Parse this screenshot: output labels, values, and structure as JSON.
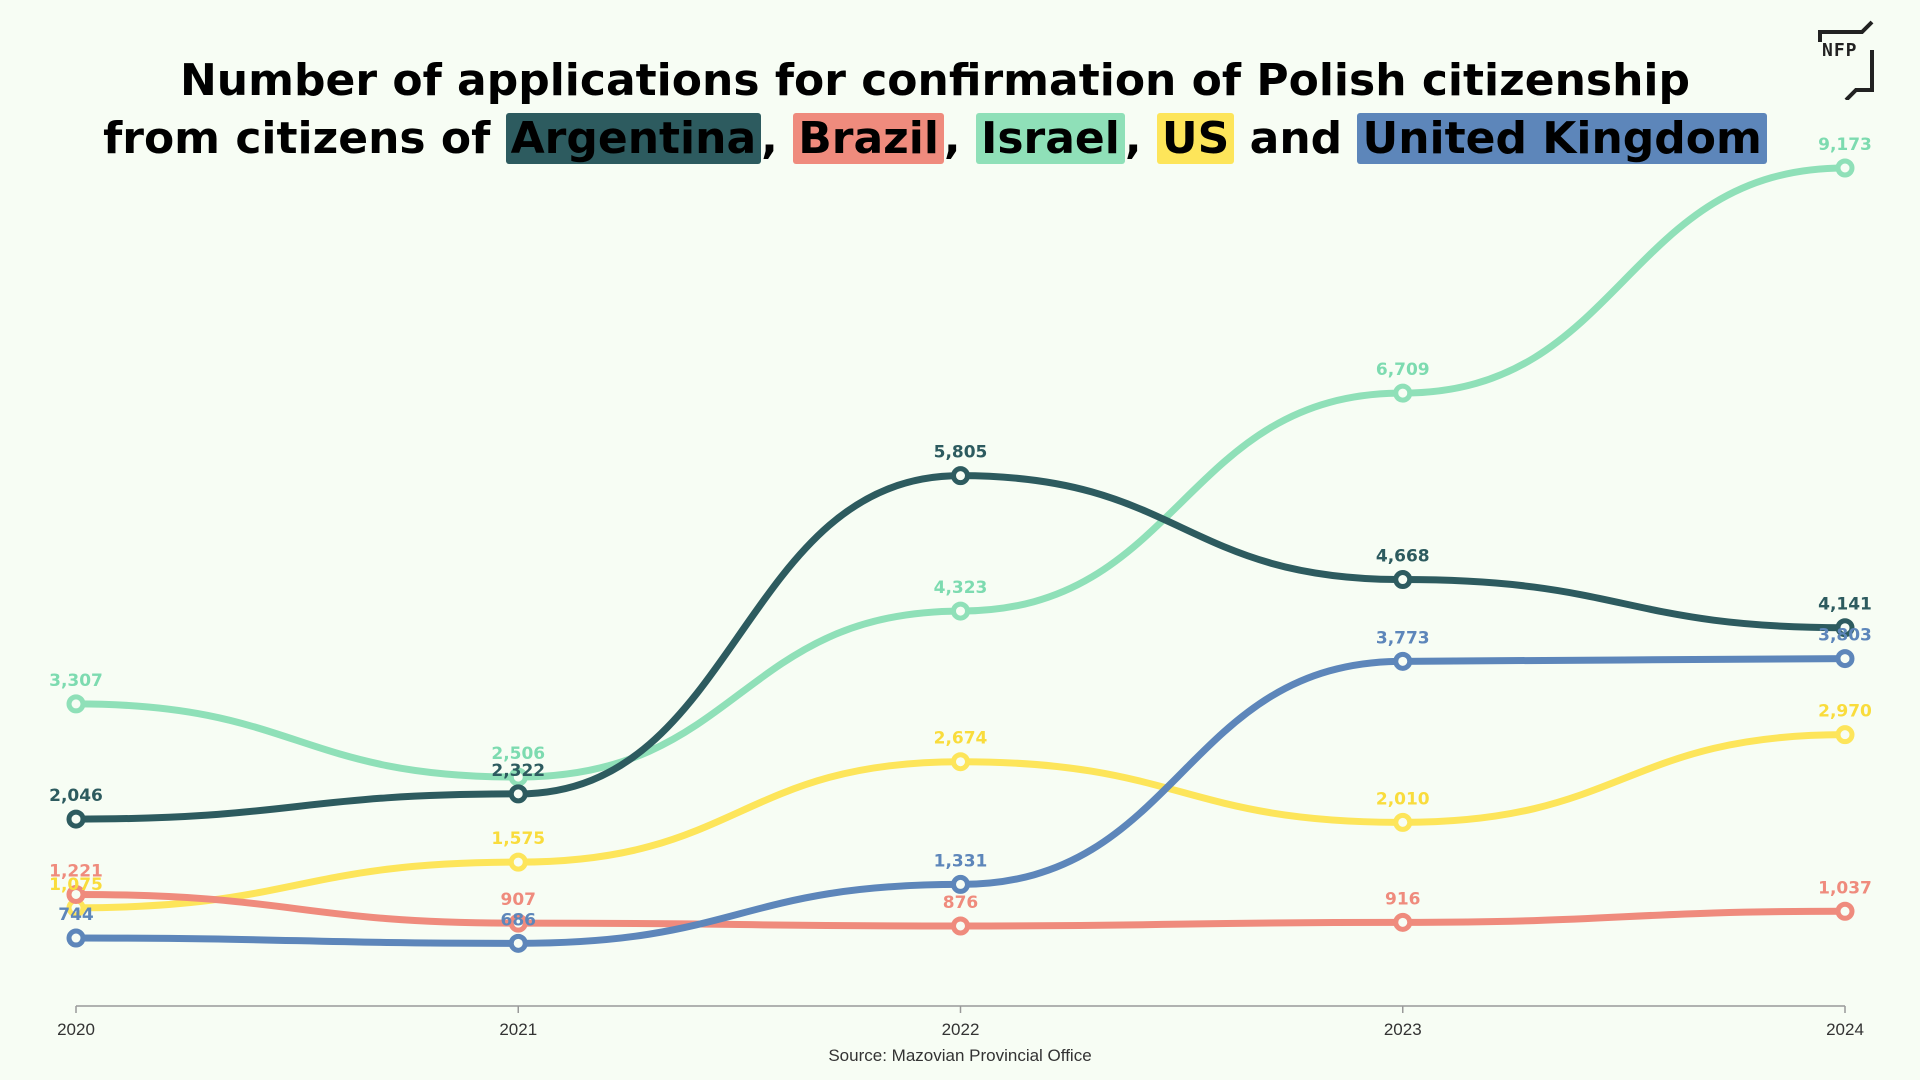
{
  "title": {
    "line1": "Number of applications for confirmation of Polish citizenship",
    "line2_prefix": "from citizens of",
    "argentina": "Argentina",
    "brazil": "Brazil",
    "israel": "Israel",
    "us": "US",
    "and": "and",
    "uk": "United Kingdom",
    "comma": ","
  },
  "logo_text": "NFP",
  "source": "Source: Mazovian Provincial Office",
  "chart_data": {
    "type": "line",
    "x": [
      "2020",
      "2021",
      "2022",
      "2023",
      "2024"
    ],
    "ylim": [
      0,
      9500
    ],
    "grid": false,
    "series": [
      {
        "name": "Israel",
        "color": "#8fe0b8",
        "label_color": "#7ddbb0",
        "values": [
          3307,
          2506,
          4323,
          6709,
          9173
        ],
        "labels": [
          "3,307",
          "2,506",
          "4,323",
          "6,709",
          "9,173"
        ]
      },
      {
        "name": "Argentina",
        "color": "#2d5b5f",
        "label_color": "#2d5b5f",
        "values": [
          2046,
          2322,
          5805,
          4668,
          4141
        ],
        "labels": [
          "2,046",
          "2,322",
          "5,805",
          "4,668",
          "4,141"
        ]
      },
      {
        "name": "US",
        "color": "#fde55a",
        "label_color": "#f9dc3c",
        "values": [
          1075,
          1575,
          2674,
          2010,
          2970
        ],
        "labels": [
          "1,075",
          "1,575",
          "2,674",
          "2,010",
          "2,970"
        ]
      },
      {
        "name": "Brazil",
        "color": "#ef8b7d",
        "label_color": "#ef8b7d",
        "values": [
          1221,
          907,
          876,
          916,
          1037
        ],
        "labels": [
          "1,221",
          "907",
          "876",
          "916",
          "1,037"
        ]
      },
      {
        "name": "United Kingdom",
        "color": "#5d86ba",
        "label_color": "#5d86ba",
        "values": [
          744,
          686,
          1331,
          3773,
          3803
        ],
        "labels": [
          "744",
          "686",
          "1,331",
          "3,773",
          "3,803"
        ]
      }
    ]
  }
}
